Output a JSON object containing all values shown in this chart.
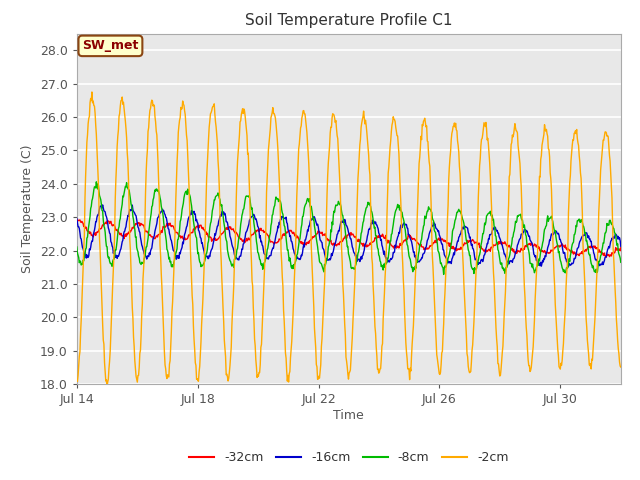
{
  "title": "Soil Temperature Profile C1",
  "xlabel": "Time",
  "ylabel": "Soil Temperature (C)",
  "ylim": [
    18.0,
    28.5
  ],
  "yticks": [
    18.0,
    19.0,
    20.0,
    21.0,
    22.0,
    23.0,
    24.0,
    25.0,
    26.0,
    27.0,
    28.0
  ],
  "fig_bg_color": "#ffffff",
  "plot_bg_color": "#e8e8e8",
  "grid_color": "#ffffff",
  "annotation_label": "SW_met",
  "annotation_color": "#8B0000",
  "annotation_bg": "#ffffcc",
  "annotation_border": "#8B4513",
  "colors": {
    "-32cm": "#ff0000",
    "-16cm": "#0000cc",
    "-8cm": "#00bb00",
    "-2cm": "#ffaa00"
  },
  "date_start": 14,
  "date_end": 32,
  "xtick_positions": [
    14,
    18,
    22,
    26,
    30
  ],
  "xtick_labels": [
    "Jul 14",
    "Jul 18",
    "Jul 22",
    "Jul 26",
    "Jul 30"
  ],
  "n_points": 864,
  "figsize": [
    6.4,
    4.8
  ],
  "dpi": 100
}
